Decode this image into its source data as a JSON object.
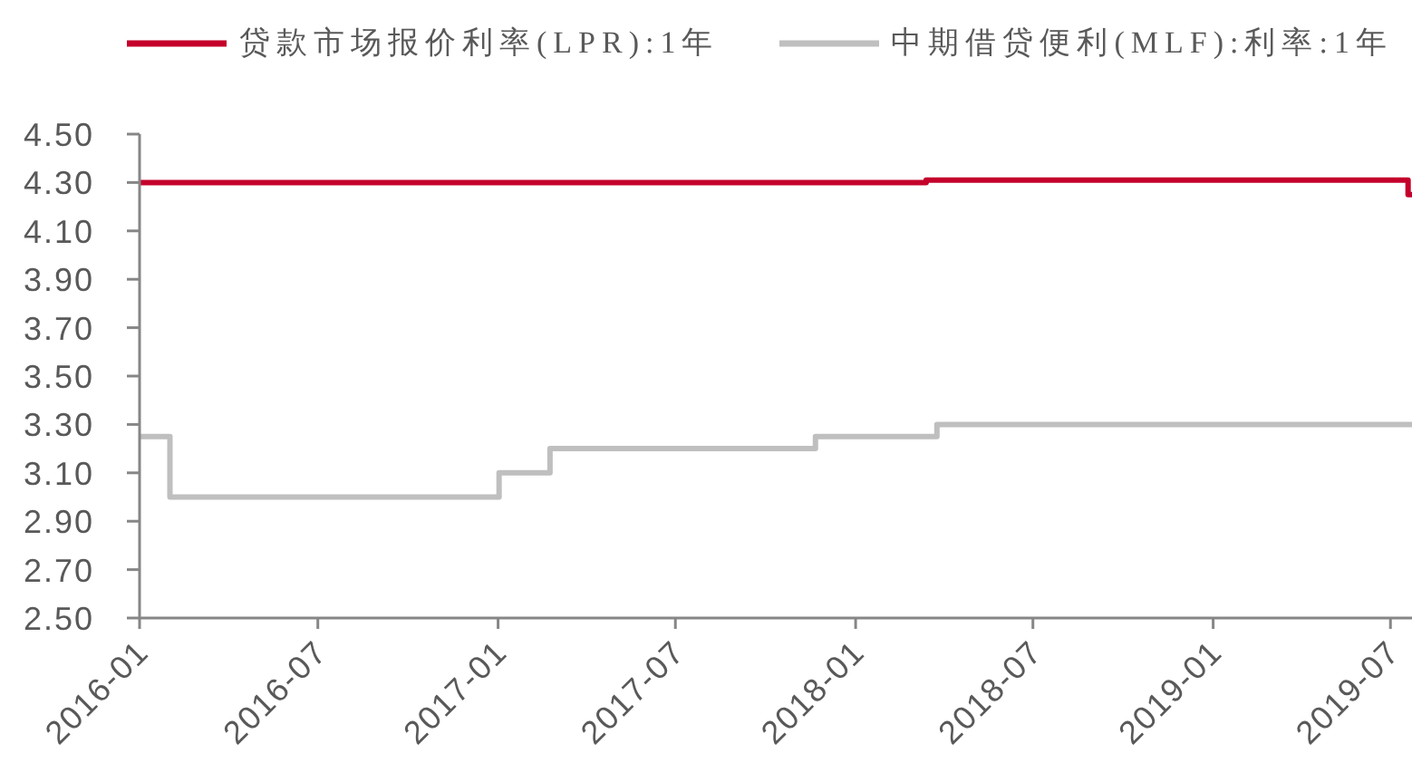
{
  "chart_data": {
    "type": "step",
    "series": [
      {
        "name": "贷款市场报价利率(LPR):1年",
        "color": "#c4002b",
        "x": [
          "2016-01-01",
          "2018-03-14",
          "2019-07-19",
          "2019-07-23"
        ],
        "values": [
          4.3,
          4.31,
          4.25,
          4.25
        ]
      },
      {
        "name": "中期借贷便利(MLF):利率:1年",
        "color": "#bfbfbf",
        "x": [
          "2016-01-01",
          "2016-02-01",
          "2017-01-02",
          "2017-02-23",
          "2017-11-21",
          "2018-03-25",
          "2019-07-23"
        ],
        "values": [
          3.25,
          3.0,
          3.1,
          3.2,
          3.25,
          3.3,
          3.3
        ]
      }
    ],
    "xlim": [
      "2016-01-01",
      "2019-07-23"
    ],
    "xticks": [
      "2016-01",
      "2016-07",
      "2017-01",
      "2017-07",
      "2018-01",
      "2018-07",
      "2019-01",
      "2019-07"
    ],
    "ylim": [
      2.5,
      4.5
    ],
    "yticks": [
      {
        "value": 2.5,
        "label": "2.50"
      },
      {
        "value": 2.7,
        "label": "2.70"
      },
      {
        "value": 2.9,
        "label": "2.90"
      },
      {
        "value": 3.1,
        "label": "3.10"
      },
      {
        "value": 3.3,
        "label": "3.30"
      },
      {
        "value": 3.5,
        "label": "3.50"
      },
      {
        "value": 3.7,
        "label": "3.70"
      },
      {
        "value": 3.9,
        "label": "3.90"
      },
      {
        "value": 4.1,
        "label": "4.10"
      },
      {
        "value": 4.3,
        "label": "4.30"
      },
      {
        "value": 4.5,
        "label": "4.50"
      }
    ],
    "legend": "top"
  }
}
